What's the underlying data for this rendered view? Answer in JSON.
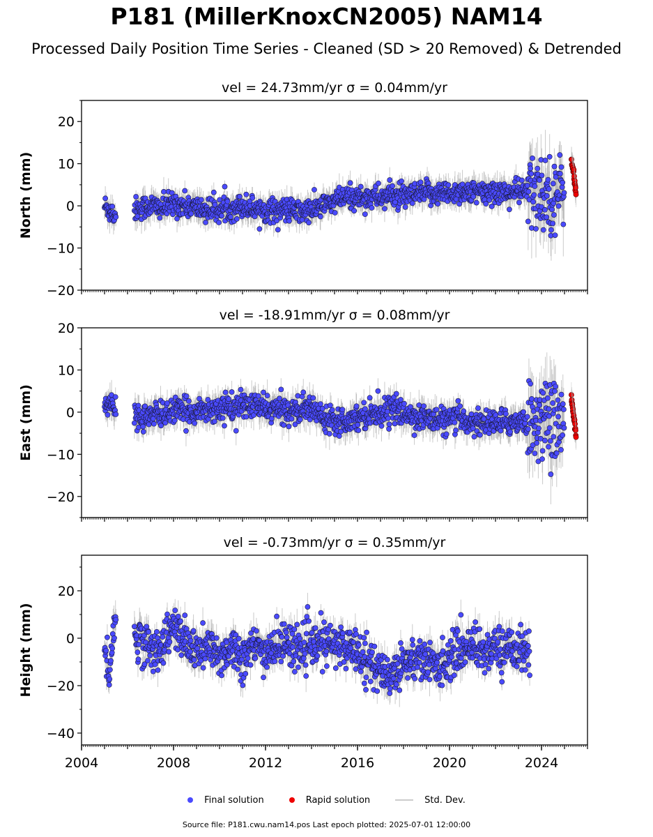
{
  "title": "P181 (MillerKnoxCN2005) NAM14",
  "subtitle": "Processed Daily Position Time Series - Cleaned (SD > 20 Removed) & Detrended",
  "footer": "Source file: P181.cwu.nam14.pos  Last epoch plotted: 2025-07-01 12:00:00",
  "legend": {
    "final": "Final solution",
    "rapid": "Rapid solution",
    "std": "Std. Dev."
  },
  "colors": {
    "final": "#4a4aff",
    "rapid": "#ee0000",
    "std": "#9e9e9e",
    "marker_edge": "#1a1a3a"
  },
  "chart_data": [
    {
      "type": "scatter",
      "title": "vel = 24.73mm/yr   σ = 0.04mm/yr",
      "ylabel": "North (mm)",
      "xlim": [
        2004,
        2026
      ],
      "ylim": [
        -20,
        25
      ],
      "yticks": [
        20,
        10,
        0,
        -10,
        -20
      ],
      "ytick_labels": [
        "20",
        "10",
        "0",
        "−10",
        "−20"
      ],
      "series": [
        {
          "name": "Final solution",
          "x": [
            2005.0,
            2005.2,
            2005.4,
            2006.5,
            2007.0,
            2007.5,
            2008.0,
            2008.5,
            2009.0,
            2009.5,
            2010.0,
            2010.5,
            2011.0,
            2011.5,
            2012.0,
            2012.5,
            2013.0,
            2013.5,
            2014.0,
            2014.5,
            2015.0,
            2015.5,
            2016.0,
            2016.5,
            2017.0,
            2017.5,
            2018.0,
            2018.5,
            2019.0,
            2019.5,
            2020.0,
            2020.5,
            2021.0,
            2021.5,
            2022.0,
            2022.5,
            2023.0,
            2023.5,
            2023.8,
            2024.2,
            2024.6,
            2025.0
          ],
          "y": [
            0.0,
            -1.0,
            -2.0,
            -0.5,
            0.0,
            -0.5,
            0.5,
            0.0,
            -0.5,
            -1.0,
            -1.0,
            -0.5,
            0.0,
            -0.5,
            -1.0,
            -1.0,
            -1.0,
            -1.5,
            -1.0,
            0.0,
            1.0,
            2.0,
            2.0,
            2.0,
            2.0,
            2.5,
            2.0,
            2.5,
            3.0,
            3.0,
            3.0,
            3.5,
            3.0,
            3.0,
            3.5,
            3.0,
            3.5,
            3.0,
            3.0,
            3.0,
            3.0,
            3.0
          ]
        },
        {
          "name": "Rapid solution",
          "x": [
            2025.3,
            2025.35,
            2025.4,
            2025.45,
            2025.5
          ],
          "y": [
            11.0,
            9.0,
            7.5,
            5.0,
            3.0
          ]
        }
      ]
    },
    {
      "type": "scatter",
      "title": "vel = -18.91mm/yr   σ = 0.08mm/yr",
      "ylabel": "East (mm)",
      "xlim": [
        2004,
        2026
      ],
      "ylim": [
        -25,
        20
      ],
      "yticks": [
        20,
        10,
        0,
        -10,
        -20
      ],
      "ytick_labels": [
        "20",
        "10",
        "0",
        "−10",
        "−20"
      ],
      "series": [
        {
          "name": "Final solution",
          "x": [
            2005.0,
            2005.2,
            2005.4,
            2006.5,
            2007.0,
            2007.5,
            2008.0,
            2008.5,
            2009.0,
            2009.5,
            2010.0,
            2010.5,
            2011.0,
            2011.5,
            2012.0,
            2012.5,
            2013.0,
            2013.5,
            2014.0,
            2014.5,
            2015.0,
            2015.5,
            2016.0,
            2016.5,
            2017.0,
            2017.5,
            2018.0,
            2018.5,
            2019.0,
            2019.5,
            2020.0,
            2020.5,
            2021.0,
            2021.5,
            2022.0,
            2022.5,
            2023.0,
            2023.5,
            2023.8,
            2024.2,
            2024.6,
            2025.0
          ],
          "y": [
            1.0,
            2.0,
            1.0,
            -1.0,
            -1.0,
            -0.5,
            0.5,
            0.0,
            0.5,
            0.5,
            1.0,
            1.0,
            1.5,
            1.5,
            1.0,
            0.5,
            0.5,
            0.5,
            1.0,
            -1.0,
            -1.5,
            -2.0,
            -1.0,
            -0.5,
            0.0,
            1.0,
            -0.5,
            -1.0,
            -1.5,
            -2.0,
            -2.0,
            -1.5,
            -2.5,
            -2.5,
            -2.5,
            -2.5,
            -2.0,
            -2.5,
            -2.0,
            -2.0,
            -2.0,
            -2.0
          ]
        },
        {
          "name": "Rapid solution",
          "x": [
            2025.3,
            2025.35,
            2025.4,
            2025.45,
            2025.5
          ],
          "y": [
            3.5,
            1.0,
            -1.0,
            -3.0,
            -5.5
          ]
        }
      ]
    },
    {
      "type": "scatter",
      "title": "vel = -0.73mm/yr   σ = 0.35mm/yr",
      "ylabel": "Height (mm)",
      "xlim": [
        2004,
        2026
      ],
      "ylim": [
        -45,
        35
      ],
      "yticks": [
        20,
        0,
        -20,
        -40
      ],
      "ytick_labels": [
        "20",
        "0",
        "−20",
        "−40"
      ],
      "xticks": [
        2004,
        2008,
        2012,
        2016,
        2020,
        2024
      ],
      "xtick_labels": [
        "2004",
        "2008",
        "2012",
        "2016",
        "2020",
        "2024"
      ],
      "series": [
        {
          "name": "Final solution",
          "x": [
            2005.0,
            2005.2,
            2005.4,
            2006.5,
            2007.0,
            2007.5,
            2008.0,
            2008.5,
            2009.0,
            2009.5,
            2010.0,
            2010.5,
            2011.0,
            2011.5,
            2012.0,
            2012.5,
            2013.0,
            2013.5,
            2014.0,
            2014.5,
            2015.0,
            2015.5,
            2016.0,
            2016.5,
            2017.0,
            2017.5,
            2018.0,
            2018.5,
            2019.0,
            2019.5,
            2020.0,
            2020.5,
            2021.0,
            2021.5,
            2022.0,
            2022.5,
            2023.0,
            2023.5
          ],
          "y": [
            -5,
            -15,
            5,
            0,
            -5,
            -3,
            5,
            -2,
            -6,
            -4,
            -8,
            -3,
            -8,
            -4,
            -6,
            -3,
            -2,
            -4,
            -4,
            -2,
            -3,
            -4,
            -4,
            -10,
            -15,
            -15,
            -10,
            -8,
            -10,
            -12,
            -8,
            -5,
            -2,
            -6,
            -4,
            -5,
            -3,
            -8
          ]
        },
        {
          "name": "Rapid solution",
          "x": [],
          "y": []
        }
      ]
    }
  ]
}
